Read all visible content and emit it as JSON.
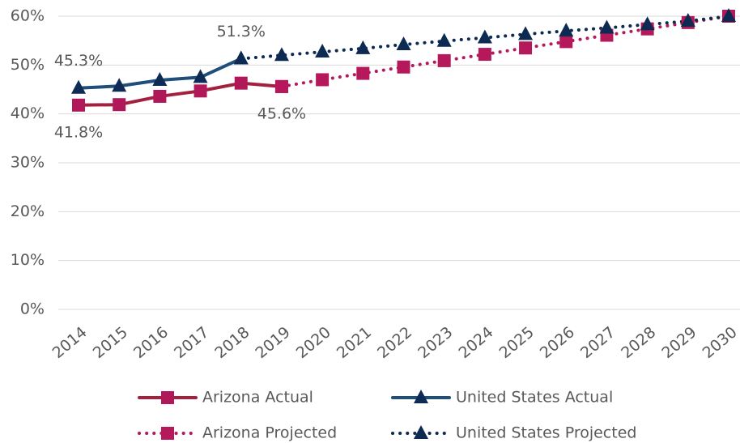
{
  "chart_data": {
    "type": "line",
    "categories": [
      "2014",
      "2015",
      "2016",
      "2017",
      "2018",
      "2019",
      "2020",
      "2021",
      "2022",
      "2023",
      "2024",
      "2025",
      "2026",
      "2027",
      "2028",
      "2029",
      "2030"
    ],
    "series": [
      {
        "name": "Arizona Actual",
        "color": "#a3203f",
        "marker_color": "#b0185a",
        "marker": "square",
        "dash": "solid",
        "values": [
          41.8,
          41.9,
          43.6,
          44.7,
          46.3,
          45.6,
          null,
          null,
          null,
          null,
          null,
          null,
          null,
          null,
          null,
          null,
          null
        ],
        "value_labels": [
          "41.8%",
          null,
          null,
          null,
          null,
          "45.6%",
          null,
          null,
          null,
          null,
          null,
          null,
          null,
          null,
          null,
          null,
          null
        ]
      },
      {
        "name": "United States Actual",
        "color": "#1f4e79",
        "marker_color": "#0d2b55",
        "marker": "triangle",
        "dash": "solid",
        "values": [
          45.3,
          45.7,
          46.9,
          47.5,
          51.3,
          null,
          null,
          null,
          null,
          null,
          null,
          null,
          null,
          null,
          null,
          null,
          null
        ],
        "value_labels": [
          "45.3%",
          null,
          null,
          null,
          "51.3%",
          null,
          null,
          null,
          null,
          null,
          null,
          null,
          null,
          null,
          null,
          null,
          null
        ]
      },
      {
        "name": "Arizona Projected",
        "color": "#b5195b",
        "marker_color": "#b5195b",
        "marker": "square",
        "dash": "dotted",
        "values": [
          null,
          null,
          null,
          null,
          null,
          45.6,
          47.0,
          48.3,
          49.6,
          50.9,
          52.2,
          53.5,
          54.8,
          56.1,
          57.4,
          58.7,
          60.0
        ]
      },
      {
        "name": "United States Projected",
        "color": "#0c2a52",
        "marker_color": "#0c2a52",
        "marker": "triangle",
        "dash": "dotted",
        "values": [
          null,
          null,
          null,
          null,
          51.3,
          52.0,
          52.7,
          53.4,
          54.2,
          54.9,
          55.6,
          56.3,
          57.0,
          57.6,
          58.3,
          59.0,
          60.0
        ]
      }
    ],
    "ylim": [
      0,
      60
    ],
    "yticks": [
      {
        "value": 0,
        "label": "0%"
      },
      {
        "value": 10,
        "label": "10%"
      },
      {
        "value": 20,
        "label": "20%"
      },
      {
        "value": 30,
        "label": "30%"
      },
      {
        "value": 40,
        "label": "40%"
      },
      {
        "value": 50,
        "label": "50%"
      },
      {
        "value": 60,
        "label": "60%"
      }
    ],
    "grid": true,
    "legend": "bottom"
  }
}
